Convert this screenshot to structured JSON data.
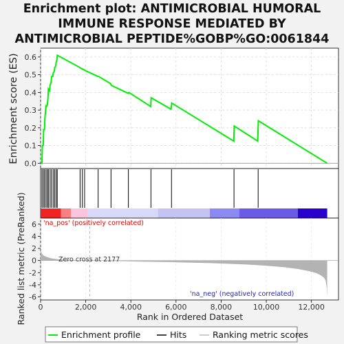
{
  "title_lines": [
    "Enrichment plot: ANTIMICROBIAL HUMORAL",
    "IMMUNE RESPONSE MEDIATED BY",
    "ANTIMICROBIAL PEPTIDE%GOBP%GO:0061844"
  ],
  "colors": {
    "es_line": "#00ee00",
    "hits": "#000000",
    "metric_fill": "#b3b3b3",
    "pos_text": "#dd0000",
    "neg_text": "#2222cc",
    "zero_line": "#bbbbbb"
  },
  "chart_data": {
    "type": "line",
    "es_panel": {
      "ylabel": "Enrichment score (ES)",
      "ylim": [
        -0.03,
        0.65
      ],
      "yticks": [
        0.0,
        0.1,
        0.2,
        0.3,
        0.4,
        0.5,
        0.6
      ],
      "ytick_labels": [
        "0.0",
        "0.1",
        "0.2",
        "0.3",
        "0.4",
        "0.5",
        "0.6"
      ],
      "grid": true,
      "series": [
        {
          "name": "Enrichment profile",
          "x": [
            0,
            60,
            75,
            120,
            135,
            175,
            190,
            240,
            255,
            300,
            330,
            345,
            400,
            420,
            470,
            485,
            540,
            560,
            610,
            625,
            670,
            690,
            720,
            740,
            1750,
            1800,
            1900,
            1950,
            2550,
            2580,
            3100,
            3130,
            3880,
            3910,
            4880,
            4900,
            5780,
            5810,
            8560,
            8580,
            9620,
            9650,
            12700
          ],
          "y": [
            0.0,
            0.0,
            0.1,
            0.1,
            0.19,
            0.19,
            0.25,
            0.33,
            0.32,
            0.33,
            0.37,
            0.42,
            0.41,
            0.44,
            0.46,
            0.49,
            0.49,
            0.51,
            0.52,
            0.54,
            0.55,
            0.57,
            0.58,
            0.61,
            0.54,
            0.535,
            0.53,
            0.525,
            0.49,
            0.49,
            0.45,
            0.44,
            0.395,
            0.4,
            0.32,
            0.37,
            0.305,
            0.34,
            0.125,
            0.21,
            0.125,
            0.24,
            0.0
          ]
        }
      ]
    },
    "hits_panel": {
      "hit_positions": [
        60,
        120,
        175,
        240,
        300,
        345,
        420,
        485,
        560,
        625,
        690,
        740,
        1750,
        1850,
        1950,
        2550,
        3120,
        3890,
        4890,
        5800,
        8570,
        9640
      ],
      "color_bar": [
        {
          "start": 0,
          "end": 900,
          "color": "#ee2222"
        },
        {
          "start": 900,
          "end": 1350,
          "color": "#f98080"
        },
        {
          "start": 1350,
          "end": 2100,
          "color": "#fcc4dd"
        },
        {
          "start": 2100,
          "end": 5200,
          "color": "#d8d8f8"
        },
        {
          "start": 5200,
          "end": 7500,
          "color": "#c4c4f4"
        },
        {
          "start": 7500,
          "end": 8800,
          "color": "#8a8af2"
        },
        {
          "start": 8800,
          "end": 11400,
          "color": "#6a5ae6"
        },
        {
          "start": 11400,
          "end": 12700,
          "color": "#2b00cc"
        }
      ]
    },
    "metric_panel": {
      "ylabel": "Ranked list metric (PreRanked)",
      "ylim": [
        -6.5,
        7.0
      ],
      "yticks": [
        -6,
        -4,
        -2,
        0,
        2,
        4,
        6
      ],
      "ytick_labels": [
        "-6",
        "-4",
        "-2",
        "0",
        "2",
        "4",
        "6"
      ],
      "zero_cross": 2177,
      "curve_x": [
        0,
        20,
        60,
        150,
        300,
        500,
        800,
        1200,
        1700,
        2177,
        3000,
        4500,
        6000,
        7500,
        9000,
        10000,
        10800,
        11400,
        11900,
        12200,
        12400,
        12550,
        12630,
        12680,
        12700
      ],
      "curve_y": [
        1.8,
        1.5,
        1.1,
        0.8,
        0.55,
        0.35,
        0.2,
        0.1,
        0.04,
        0.0,
        -0.07,
        -0.17,
        -0.28,
        -0.42,
        -0.62,
        -0.85,
        -1.1,
        -1.4,
        -1.75,
        -2.05,
        -2.4,
        -2.8,
        -3.3,
        -4.5,
        -6.0
      ],
      "annotations": {
        "pos": "'na_pos' (positively correlated)",
        "neg": "'na_neg' (negatively correlated)",
        "zero": "Zero cross at 2177"
      }
    },
    "x_axis": {
      "xlabel": "Rank in Ordered Dataset",
      "xlim": [
        0,
        13200
      ],
      "xticks": [
        0,
        2000,
        4000,
        6000,
        8000,
        10000,
        12000
      ],
      "xtick_labels": [
        "0",
        "2,000",
        "4,000",
        "6,000",
        "8,000",
        "10,000",
        "12,000"
      ]
    },
    "legend": {
      "placement": "bottom",
      "entries": [
        {
          "label": "Enrichment profile",
          "kind": "line",
          "color": "#00ee00"
        },
        {
          "label": "Hits",
          "kind": "line",
          "color": "#000000"
        },
        {
          "label": "Ranking metric scores",
          "kind": "line",
          "color": "#bbbbbb"
        }
      ]
    }
  }
}
